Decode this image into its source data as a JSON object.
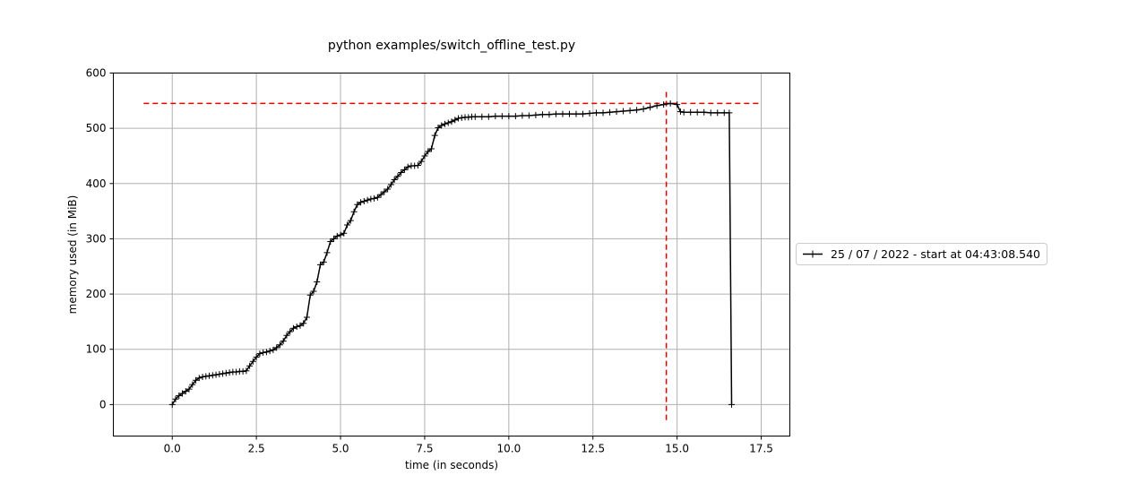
{
  "chart_data": {
    "type": "line",
    "title": "python examples/switch_offline_test.py",
    "xlabel": "time (in seconds)",
    "ylabel": "memory used (in MiB)",
    "xlim": [
      -1.75,
      18.35
    ],
    "ylim": [
      -57,
      600
    ],
    "xticks": [
      0.0,
      2.5,
      5.0,
      7.5,
      10.0,
      12.5,
      15.0,
      17.5
    ],
    "xtick_labels": [
      "0.0",
      "2.5",
      "5.0",
      "7.5",
      "10.0",
      "12.5",
      "15.0",
      "17.5"
    ],
    "yticks": [
      0,
      100,
      200,
      300,
      400,
      500,
      600
    ],
    "ytick_labels": [
      "0",
      "100",
      "200",
      "300",
      "400",
      "500",
      "600"
    ],
    "grid": true,
    "legend_position": "right-outside",
    "series": [
      {
        "name": "25 / 07 / 2022 - start at 04:43:08.540",
        "color": "#000000",
        "marker": "+",
        "x": [
          0.0,
          0.1,
          0.2,
          0.3,
          0.4,
          0.5,
          0.6,
          0.7,
          0.8,
          0.9,
          1.0,
          1.1,
          1.2,
          1.3,
          1.4,
          1.5,
          1.6,
          1.7,
          1.8,
          1.9,
          2.0,
          2.1,
          2.2,
          2.3,
          2.4,
          2.5,
          2.6,
          2.7,
          2.8,
          2.9,
          3.0,
          3.1,
          3.2,
          3.3,
          3.4,
          3.5,
          3.6,
          3.7,
          3.8,
          3.9,
          4.0,
          4.1,
          4.2,
          4.3,
          4.4,
          4.5,
          4.6,
          4.7,
          4.8,
          4.9,
          5.0,
          5.1,
          5.2,
          5.3,
          5.4,
          5.5,
          5.6,
          5.7,
          5.8,
          5.9,
          6.0,
          6.1,
          6.2,
          6.3,
          6.4,
          6.5,
          6.6,
          6.7,
          6.8,
          6.9,
          7.0,
          7.1,
          7.2,
          7.3,
          7.4,
          7.5,
          7.6,
          7.7,
          7.8,
          7.9,
          8.0,
          8.1,
          8.2,
          8.3,
          8.4,
          8.5,
          8.6,
          8.7,
          8.8,
          8.9,
          9.0,
          9.2,
          9.4,
          9.6,
          9.8,
          10.0,
          10.2,
          10.4,
          10.6,
          10.8,
          11.0,
          11.2,
          11.4,
          11.6,
          11.8,
          12.0,
          12.2,
          12.4,
          12.6,
          12.8,
          13.0,
          13.2,
          13.4,
          13.6,
          13.8,
          14.0,
          14.2,
          14.4,
          14.6,
          14.8,
          15.0,
          15.1,
          15.2,
          15.4,
          15.6,
          15.8,
          16.0,
          16.2,
          16.4,
          16.55,
          16.62
        ],
        "y": [
          0,
          10,
          16,
          20,
          24,
          28,
          36,
          44,
          48,
          50,
          51,
          52,
          53,
          54,
          55,
          56,
          57,
          58,
          59,
          59,
          60,
          60,
          61,
          70,
          78,
          86,
          92,
          94,
          95,
          97,
          99,
          103,
          108,
          115,
          125,
          132,
          138,
          141,
          143,
          147,
          158,
          198,
          205,
          222,
          253,
          258,
          275,
          295,
          300,
          305,
          307,
          310,
          325,
          333,
          349,
          362,
          366,
          368,
          370,
          372,
          373,
          375,
          380,
          385,
          390,
          398,
          407,
          413,
          420,
          425,
          430,
          432,
          432,
          433,
          440,
          450,
          458,
          463,
          487,
          501,
          505,
          508,
          510,
          512,
          515,
          518,
          519,
          520,
          520,
          521,
          521,
          521,
          521,
          522,
          522,
          522,
          522,
          523,
          523,
          524,
          525,
          525,
          526,
          526,
          526,
          526,
          526,
          527,
          528,
          528,
          529,
          530,
          531,
          532,
          533,
          535,
          538,
          541,
          543,
          545,
          543,
          530,
          529,
          529,
          529,
          529,
          528,
          528,
          528,
          528,
          0
        ]
      }
    ],
    "reference_lines": [
      {
        "orientation": "horizontal",
        "y": 545,
        "x_from": -0.85,
        "x_to": 17.5,
        "color": "#e00000"
      },
      {
        "orientation": "vertical",
        "x": 14.68,
        "y_from": -28,
        "y_to": 572,
        "color": "#e00000"
      }
    ]
  }
}
